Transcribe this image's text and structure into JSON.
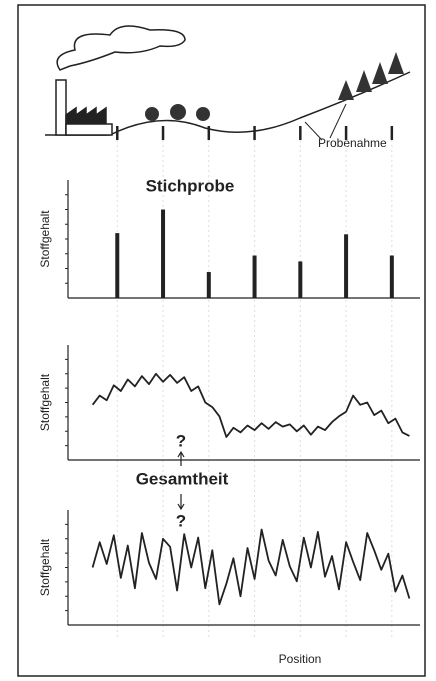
{
  "landscape": {
    "label": "Probenahme"
  },
  "x_label": "Position",
  "center_label": "Gesamtheit",
  "question_marks": [
    "?",
    "?"
  ],
  "panels": [
    {
      "type": "bar",
      "title": "Stichprobe",
      "y_label": "Stoffgehalt",
      "x": [
        14,
        27,
        40,
        53,
        66,
        79,
        92
      ],
      "values": [
        5.5,
        7.5,
        2.2,
        3.6,
        3.1,
        5.4,
        3.6
      ],
      "xlim": [
        0,
        100
      ],
      "ylim": [
        0,
        10
      ],
      "color": "#222222"
    },
    {
      "type": "line",
      "y_label": "Stoffgehalt",
      "x": [
        7,
        9,
        11,
        13,
        15,
        17,
        19,
        21,
        23,
        25,
        27,
        29,
        31,
        33,
        35,
        37,
        39,
        41,
        43,
        45,
        47,
        49,
        51,
        53,
        55,
        57,
        59,
        61,
        63,
        65,
        67,
        69,
        71,
        73,
        75,
        77,
        79,
        81,
        83,
        85,
        87,
        89,
        91,
        93,
        95,
        97
      ],
      "values": [
        4.8,
        5.6,
        5.2,
        6.5,
        6.0,
        7.0,
        6.4,
        7.3,
        6.6,
        7.5,
        6.8,
        7.4,
        6.7,
        7.2,
        6.0,
        6.4,
        5.0,
        4.6,
        3.8,
        2.0,
        2.8,
        2.4,
        3.0,
        2.6,
        3.2,
        2.7,
        3.3,
        2.9,
        3.1,
        2.5,
        3.0,
        2.2,
        2.9,
        2.6,
        3.3,
        3.8,
        4.2,
        5.6,
        4.8,
        5.0,
        3.9,
        4.3,
        3.2,
        3.6,
        2.4,
        2.1
      ],
      "xlim": [
        0,
        100
      ],
      "ylim": [
        0,
        10
      ],
      "color": "#222222"
    },
    {
      "type": "line",
      "y_label": "Stoffgehalt",
      "x": [
        7,
        9,
        11,
        13,
        15,
        17,
        19,
        21,
        23,
        25,
        27,
        29,
        31,
        33,
        35,
        37,
        39,
        41,
        43,
        45,
        47,
        49,
        51,
        53,
        55,
        57,
        59,
        61,
        63,
        65,
        67,
        69,
        71,
        73,
        75,
        77,
        79,
        81,
        83,
        85,
        87,
        89,
        91,
        93,
        95,
        97
      ],
      "values": [
        5.0,
        7.2,
        5.3,
        7.8,
        4.1,
        6.9,
        3.2,
        8.0,
        5.4,
        4.0,
        7.5,
        6.8,
        3.0,
        7.9,
        5.0,
        7.6,
        3.2,
        6.5,
        1.8,
        3.6,
        5.8,
        2.5,
        6.7,
        4.0,
        8.3,
        5.6,
        4.3,
        7.4,
        5.1,
        3.8,
        7.6,
        5.0,
        8.1,
        4.2,
        6.0,
        3.1,
        7.2,
        5.5,
        3.9,
        8.0,
        6.5,
        4.8,
        6.2,
        2.9,
        4.3,
        2.3
      ],
      "xlim": [
        0,
        100
      ],
      "ylim": [
        0,
        10
      ],
      "color": "#222222"
    }
  ]
}
